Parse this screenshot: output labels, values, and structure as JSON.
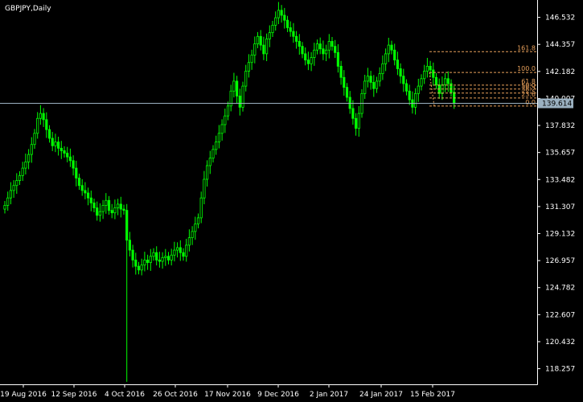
{
  "chart_title": "GBPJPY,Daily",
  "colors": {
    "background": "#000000",
    "candles": "#00ff00",
    "axis": "#ffffff",
    "fibonacci": "#e8a05a",
    "current_price_line": "#9ab0c0",
    "current_price_tag": "#9ab0c0"
  },
  "chart_data": {
    "type": "candlestick",
    "title": "GBPJPY,Daily",
    "ylim": [
      117.0,
      147.8
    ],
    "y_ticks": [
      "146.532",
      "144.357",
      "142.182",
      "140.007",
      "137.832",
      "135.657",
      "133.482",
      "131.307",
      "129.132",
      "126.957",
      "124.782",
      "122.607",
      "120.432",
      "118.257"
    ],
    "x_ticks": [
      "19 Aug 2016",
      "12 Sep 2016",
      "4 Oct 2016",
      "26 Oct 2016",
      "17 Nov 2016",
      "9 Dec 2016",
      "2 Jan 2017",
      "24 Jan 2017",
      "15 Feb 2017"
    ],
    "current_price": "139.614",
    "close_series": [
      131.4,
      132.0,
      132.6,
      133.0,
      133.4,
      133.8,
      134.4,
      134.9,
      135.5,
      136.3,
      137.2,
      138.4,
      138.8,
      138.3,
      137.5,
      136.8,
      136.2,
      136.5,
      136.0,
      135.8,
      135.6,
      135.3,
      135.0,
      134.4,
      133.6,
      133.0,
      132.6,
      132.4,
      132.0,
      131.6,
      131.2,
      130.6,
      130.9,
      131.4,
      131.8,
      131.0,
      130.8,
      131.2,
      131.5,
      131.1,
      131.0,
      128.6,
      127.8,
      127.0,
      126.5,
      126.2,
      126.6,
      127.0,
      126.8,
      127.3,
      127.6,
      127.0,
      126.9,
      127.2,
      127.3,
      127.0,
      127.4,
      127.8,
      128.0,
      127.6,
      127.3,
      128.2,
      128.8,
      129.3,
      129.9,
      130.4,
      132.0,
      133.5,
      134.6,
      135.2,
      135.9,
      136.5,
      137.2,
      137.9,
      138.6,
      139.4,
      140.6,
      141.4,
      140.2,
      139.3,
      141.0,
      142.2,
      142.9,
      143.5,
      144.4,
      145.0,
      144.3,
      143.6,
      144.8,
      145.3,
      145.9,
      146.5,
      147.1,
      146.7,
      146.3,
      145.7,
      145.4,
      145.0,
      144.6,
      144.2,
      143.6,
      143.1,
      142.8,
      143.3,
      143.9,
      144.4,
      144.0,
      143.6,
      143.9,
      144.6,
      144.2,
      143.7,
      142.6,
      141.7,
      140.9,
      140.1,
      139.2,
      138.4,
      137.6,
      138.8,
      140.4,
      141.4,
      141.8,
      141.3,
      140.8,
      141.4,
      142.0,
      142.8,
      143.6,
      144.3,
      143.9,
      143.1,
      142.4,
      141.8,
      141.2,
      140.6,
      139.9,
      139.3,
      140.4,
      141.0,
      141.6,
      142.2,
      142.6,
      142.3,
      141.7,
      141.1,
      140.4,
      141.1,
      141.6,
      141.2,
      140.5,
      139.6
    ],
    "fibonacci": {
      "levels": [
        {
          "label": "161.8",
          "price": 143.77
        },
        {
          "label": "100.0",
          "price": 142.1
        },
        {
          "label": "61.8",
          "price": 141.08
        },
        {
          "label": "50.0",
          "price": 140.76
        },
        {
          "label": "38.2",
          "price": 140.44
        },
        {
          "label": "23.6",
          "price": 140.04
        },
        {
          "label": "0.0",
          "price": 139.4
        }
      ]
    }
  }
}
